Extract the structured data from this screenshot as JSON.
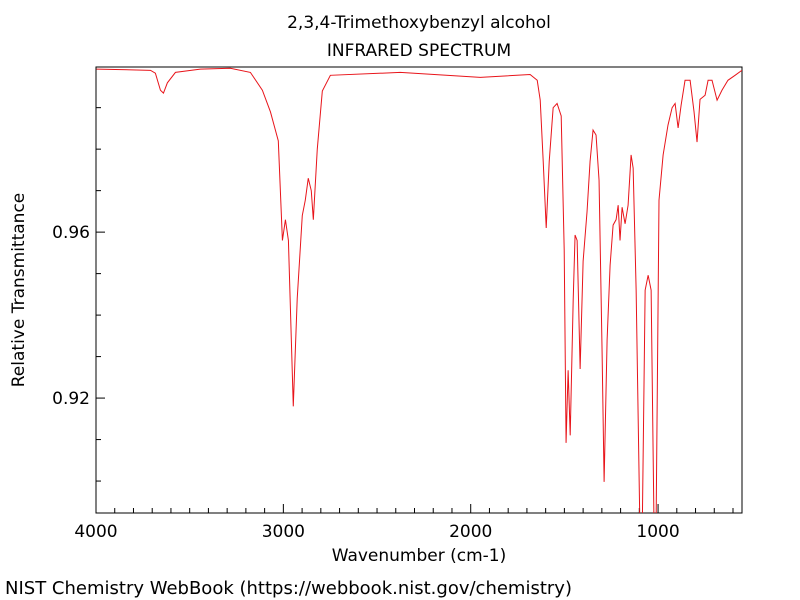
{
  "chart_data": {
    "type": "line",
    "title": "2,3,4-Trimethoxybenzyl alcohol",
    "subtitle": "INFRARED SPECTRUM",
    "x_label": "Wavenumber (cm-1)",
    "y_label": "Relative Transmittance",
    "footer": "NIST Chemistry WebBook (https://webbook.nist.gov/chemistry)",
    "color": "#e8141a",
    "xlim": [
      4000,
      552
    ],
    "ylim": [
      0.8923,
      0.9998
    ],
    "xticks": [
      4000,
      3000,
      2000,
      1000
    ],
    "xminorticks": [
      3900,
      3800,
      3700,
      3600,
      3500,
      3400,
      3300,
      3200,
      3100,
      2900,
      2800,
      2700,
      2600,
      2500,
      2400,
      2300,
      2200,
      2100,
      1900,
      1800,
      1700,
      1600,
      1500,
      1400,
      1300,
      1200,
      1100,
      900,
      800,
      700,
      600
    ],
    "yticks": [
      0.92,
      0.96
    ],
    "yminorticks": [
      0.9,
      0.91,
      0.93,
      0.94,
      0.95,
      0.97,
      0.98,
      0.99
    ],
    "x": [
      3997,
      3709,
      3683,
      3656,
      3640,
      3619,
      3576,
      3443,
      3283,
      3176,
      3112,
      3069,
      3027,
      3005,
      2989,
      2973,
      2947,
      2926,
      2899,
      2883,
      2867,
      2851,
      2840,
      2819,
      2792,
      2749,
      2376,
      1949,
      1683,
      1645,
      1629,
      1613,
      1597,
      1581,
      1560,
      1539,
      1517,
      1501,
      1491,
      1480,
      1469,
      1453,
      1443,
      1432,
      1416,
      1400,
      1379,
      1363,
      1347,
      1331,
      1315,
      1299,
      1288,
      1272,
      1256,
      1240,
      1224,
      1213,
      1203,
      1192,
      1176,
      1160,
      1144,
      1133,
      1117,
      1096,
      1085,
      1069,
      1053,
      1037,
      1021,
      1011,
      995,
      973,
      947,
      925,
      909,
      893,
      877,
      856,
      829,
      808,
      792,
      776,
      749,
      733,
      712,
      685,
      659,
      627,
      589,
      552
    ],
    "values": [
      0.9993,
      0.999,
      0.9983,
      0.9942,
      0.9935,
      0.996,
      0.9985,
      0.9993,
      0.9995,
      0.9985,
      0.9942,
      0.989,
      0.982,
      0.958,
      0.963,
      0.958,
      0.918,
      0.944,
      0.964,
      0.9677,
      0.973,
      0.97,
      0.963,
      0.98,
      0.994,
      0.9978,
      0.9985,
      0.9973,
      0.998,
      0.9966,
      0.9918,
      0.977,
      0.961,
      0.977,
      0.99,
      0.991,
      0.988,
      0.9557,
      0.9092,
      0.9267,
      0.911,
      0.9436,
      0.9593,
      0.958,
      0.927,
      0.953,
      0.965,
      0.977,
      0.9846,
      0.9834,
      0.9725,
      0.9316,
      0.8998,
      0.934,
      0.952,
      0.9617,
      0.963,
      0.9665,
      0.958,
      0.966,
      0.962,
      0.9665,
      0.9786,
      0.9754,
      0.946,
      0.886,
      0.886,
      0.946,
      0.9496,
      0.946,
      0.887,
      0.887,
      0.9677,
      0.9786,
      0.9858,
      0.99,
      0.991,
      0.9851,
      0.9906,
      0.9966,
      0.9966,
      0.989,
      0.9817,
      0.992,
      0.993,
      0.9966,
      0.9966,
      0.9918,
      0.9942,
      0.9966,
      0.9978,
      0.999
    ]
  }
}
